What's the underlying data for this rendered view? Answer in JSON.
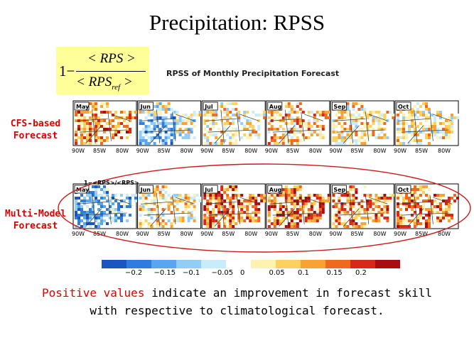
{
  "slide": {
    "title": "Precipitation: RPSS",
    "formula": {
      "one_minus": "1−",
      "numerator": "< RPS >",
      "denominator_main": "< RPS",
      "denominator_sub": "ref",
      "denominator_end": " >"
    },
    "subtitle": "RPSS of Monthly Precipitation Forecast",
    "rows": [
      {
        "label_line1": "CFS-based",
        "label_line2": "Forecast"
      },
      {
        "label_line1": "Multi-Model",
        "label_line2": "Forecast"
      }
    ],
    "months": [
      "May",
      "Jun",
      "Jul",
      "Aug",
      "Sep",
      "Oct"
    ],
    "lon_labels": [
      "90W",
      "85W",
      "80W"
    ],
    "ref_note": "1−<RPS>/<RPS>",
    "colorbar": {
      "tick_labels": [
        "−0.2",
        "−0.15",
        "−0.1",
        "−0.05",
        "0",
        "0.05",
        "0.1",
        "0.15",
        "0.2"
      ],
      "colors": [
        "#1a55c0",
        "#2f7ce0",
        "#5aa5ef",
        "#92cdf7",
        "#c8ecfb",
        "#ffffff",
        "#fff2b0",
        "#fdd060",
        "#f8a234",
        "#ee6a1e",
        "#d8281a",
        "#a80d10"
      ]
    },
    "caption": {
      "highlight": "Positive values",
      "rest_line1": " indicate an improvement in forecast skill",
      "line2": "with respective to climatological forecast."
    },
    "accent_colors": {
      "label_red": "#e00000",
      "formula_bg": "#ffff99",
      "ellipse": "#d01818"
    }
  }
}
